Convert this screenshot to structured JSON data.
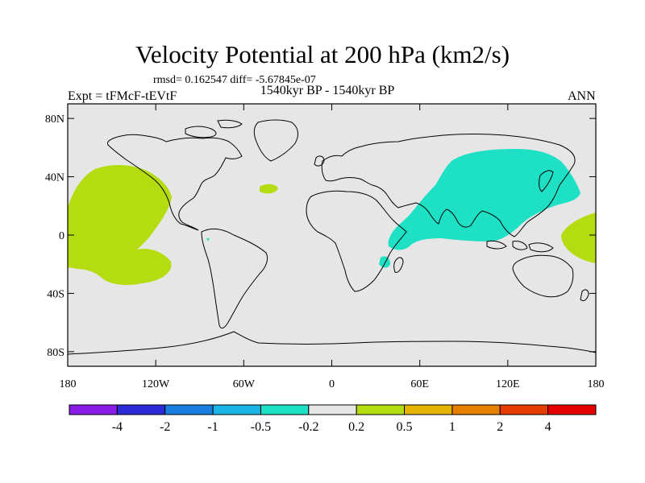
{
  "title": "Velocity Potential at 200 hPa (km2/s)",
  "stats": "rmsd= 0.162547 diff= -5.67845e-07",
  "period": "1540kyr BP - 1540kyr BP",
  "experiment": "Expt = tFMcF-tEVtF",
  "season": "ANN",
  "map": {
    "land_color": "#e6e6e6",
    "coast_color": "#000000",
    "lat_ticks": [
      "80N",
      "40N",
      "0",
      "40S",
      "80S"
    ],
    "lon_ticks": [
      "180",
      "120W",
      "60W",
      "0",
      "60E",
      "120E",
      "180"
    ]
  },
  "colorbar": {
    "colors": [
      "#8a1ee6",
      "#2a2ad6",
      "#1a7ee0",
      "#1ab4e6",
      "#1ee0c4",
      "#e6e6e6",
      "#b4dc10",
      "#e6b400",
      "#e67e00",
      "#e63c00",
      "#e60000"
    ],
    "labels": [
      "-4",
      "-2",
      "-1",
      "-0.5",
      "-0.2",
      "0.2",
      "0.5",
      "1",
      "2",
      "4"
    ]
  },
  "fields": {
    "positive_color": "#b4dc10",
    "negative_color": "#1ee0c4"
  }
}
